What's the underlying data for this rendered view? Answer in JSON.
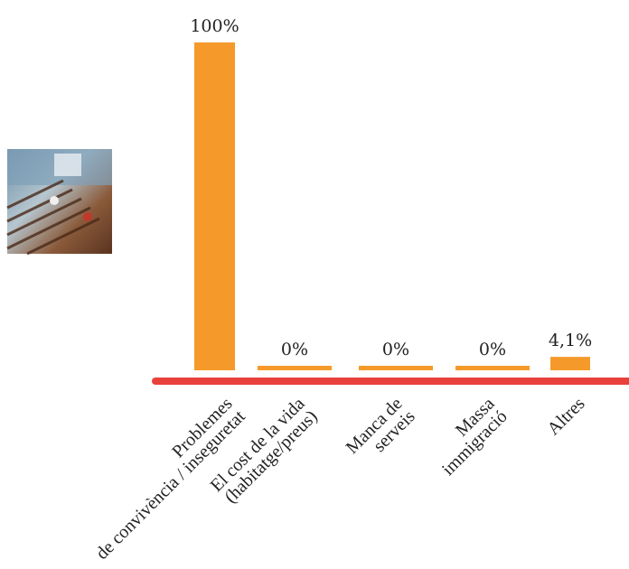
{
  "chart_data": {
    "type": "bar",
    "categories": [
      [
        "Problemes",
        "de convivència / inseguretat"
      ],
      [
        "El cost de la vida",
        "(habitatge/preus)"
      ],
      [
        "Manca de",
        "serveis"
      ],
      [
        "Massa",
        "immigració"
      ],
      [
        "Altres"
      ]
    ],
    "values": [
      100,
      0,
      0,
      0,
      4.1
    ],
    "value_labels": [
      "100%",
      "0%",
      "0%",
      "0%",
      "4,1%"
    ],
    "ylim": [
      0,
      100
    ],
    "grid": false,
    "colors": {
      "bar": "#F59A2A",
      "axis": "#E8413C"
    }
  }
}
